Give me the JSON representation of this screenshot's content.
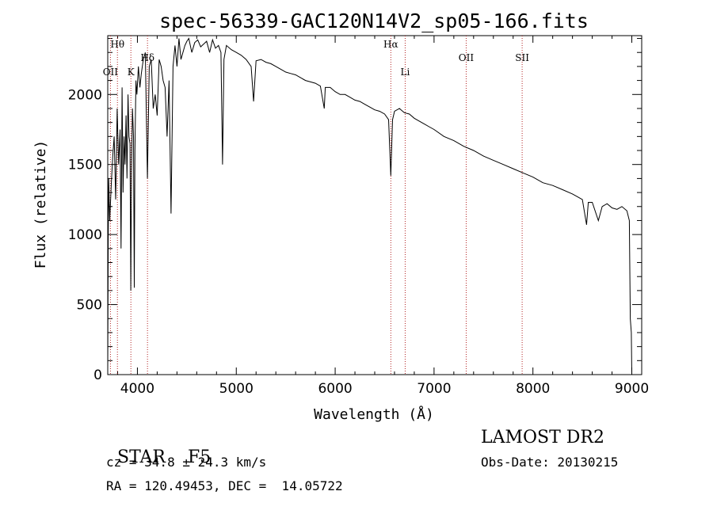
{
  "chart_data": {
    "type": "line",
    "title": "spec-56339-GAC120N14V2_sp05-166.fits",
    "xlabel": "Wavelength (Å)",
    "ylabel": "Flux (relative)",
    "xlim": [
      3700,
      9100
    ],
    "ylim": [
      0,
      2420
    ],
    "x_ticks": [
      4000,
      5000,
      6000,
      7000,
      8000,
      9000
    ],
    "y_ticks": [
      0,
      500,
      1000,
      1500,
      2000
    ],
    "grid": false,
    "series": [
      {
        "x": [
          3700,
          3705,
          3710,
          3720,
          3735,
          3750,
          3765,
          3780,
          3795,
          3810,
          3825,
          3835,
          3845,
          3855,
          3865,
          3875,
          3885,
          3895,
          3905,
          3915,
          3925,
          3933,
          3940,
          3950,
          3960,
          3968,
          3975,
          3985,
          3995,
          4010,
          4025,
          4040,
          4060,
          4080,
          4101,
          4120,
          4140,
          4160,
          4180,
          4200,
          4220,
          4240,
          4260,
          4280,
          4300,
          4320,
          4340,
          4360,
          4380,
          4400,
          4420,
          4440,
          4460,
          4480,
          4500,
          4520,
          4550,
          4580,
          4610,
          4640,
          4670,
          4700,
          4730,
          4760,
          4790,
          4820,
          4845,
          4861,
          4875,
          4900,
          4950,
          5000,
          5050,
          5100,
          5150,
          5175,
          5200,
          5250,
          5300,
          5350,
          5400,
          5450,
          5500,
          5550,
          5600,
          5650,
          5700,
          5750,
          5800,
          5850,
          5890,
          5900,
          5950,
          6000,
          6050,
          6100,
          6150,
          6200,
          6250,
          6300,
          6350,
          6400,
          6450,
          6500,
          6540,
          6563,
          6580,
          6600,
          6650,
          6700,
          6750,
          6800,
          6850,
          6900,
          6950,
          7000,
          7100,
          7200,
          7300,
          7400,
          7500,
          7600,
          7700,
          7800,
          7900,
          8000,
          8100,
          8200,
          8300,
          8400,
          8450,
          8500,
          8542,
          8560,
          8600,
          8662,
          8700,
          8750,
          8800,
          8850,
          8900,
          8950,
          8975,
          8985,
          8995,
          9000
        ],
        "y": [
          40,
          950,
          1400,
          1100,
          1350,
          1550,
          1700,
          1250,
          1900,
          1500,
          1750,
          900,
          2050,
          1300,
          1700,
          1500,
          1850,
          1400,
          2000,
          1700,
          1650,
          600,
          1450,
          1900,
          1700,
          620,
          1600,
          2100,
          2000,
          2200,
          2050,
          2150,
          2250,
          2300,
          1400,
          2200,
          2250,
          1900,
          2000,
          1850,
          2250,
          2200,
          2100,
          2050,
          1700,
          2100,
          1150,
          2200,
          2350,
          2200,
          2400,
          2250,
          2300,
          2350,
          2380,
          2400,
          2300,
          2370,
          2390,
          2340,
          2360,
          2380,
          2300,
          2390,
          2330,
          2350,
          2300,
          1500,
          2250,
          2350,
          2320,
          2300,
          2280,
          2250,
          2200,
          1950,
          2240,
          2250,
          2230,
          2220,
          2200,
          2180,
          2160,
          2150,
          2140,
          2120,
          2100,
          2090,
          2080,
          2060,
          1900,
          2050,
          2050,
          2020,
          2000,
          2000,
          1980,
          1960,
          1950,
          1930,
          1910,
          1890,
          1880,
          1860,
          1820,
          1420,
          1820,
          1880,
          1900,
          1870,
          1860,
          1830,
          1810,
          1790,
          1770,
          1750,
          1700,
          1670,
          1630,
          1600,
          1560,
          1530,
          1500,
          1470,
          1440,
          1410,
          1370,
          1350,
          1320,
          1290,
          1270,
          1250,
          1070,
          1230,
          1230,
          1100,
          1200,
          1220,
          1190,
          1180,
          1200,
          1170,
          1100,
          400,
          300,
          0
        ]
      }
    ],
    "reference_lines": [
      {
        "label": "Hθ",
        "x": 3798
      },
      {
        "label": "OII",
        "x": 3727
      },
      {
        "label": "K",
        "x": 3934
      },
      {
        "label": "Hδ",
        "x": 4102
      },
      {
        "label": "Hα",
        "x": 6563
      },
      {
        "label": "Li",
        "x": 6708
      },
      {
        "label": "OII",
        "x": 7325
      },
      {
        "label": "SII",
        "x": 7891
      }
    ]
  },
  "info": {
    "object_class": "STAR",
    "subclass": "F5",
    "survey": "LAMOST DR2",
    "redshift": "cz = 34.8 ± 24.3 km/s",
    "obs_date": "Obs-Date: 20130215",
    "coordinates": "RA = 120.49453, DEC =  14.05722"
  }
}
